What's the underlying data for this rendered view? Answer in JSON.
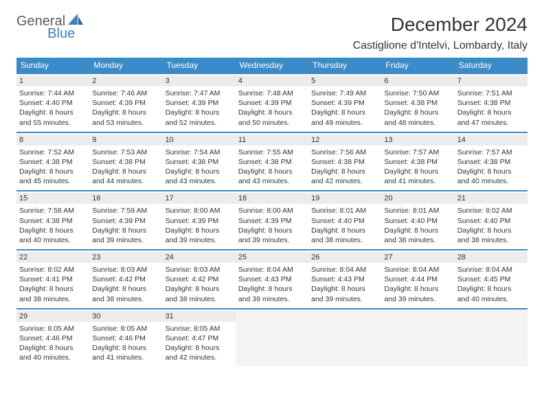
{
  "logo": {
    "part1": "General",
    "part2": "Blue"
  },
  "title": "December 2024",
  "location": "Castiglione d'Intelvi, Lombardy, Italy",
  "colors": {
    "header_bg": "#3b8bc9",
    "header_text": "#ffffff",
    "row_border": "#3b8bc9",
    "daynum_bg": "#ececec",
    "empty_bg": "#f4f4f4",
    "logo_gray": "#5a5a5a",
    "logo_blue": "#3b7fc4"
  },
  "day_names": [
    "Sunday",
    "Monday",
    "Tuesday",
    "Wednesday",
    "Thursday",
    "Friday",
    "Saturday"
  ],
  "weeks": [
    [
      {
        "n": "1",
        "sr": "Sunrise: 7:44 AM",
        "ss": "Sunset: 4:40 PM",
        "d1": "Daylight: 8 hours",
        "d2": "and 55 minutes."
      },
      {
        "n": "2",
        "sr": "Sunrise: 7:46 AM",
        "ss": "Sunset: 4:39 PM",
        "d1": "Daylight: 8 hours",
        "d2": "and 53 minutes."
      },
      {
        "n": "3",
        "sr": "Sunrise: 7:47 AM",
        "ss": "Sunset: 4:39 PM",
        "d1": "Daylight: 8 hours",
        "d2": "and 52 minutes."
      },
      {
        "n": "4",
        "sr": "Sunrise: 7:48 AM",
        "ss": "Sunset: 4:39 PM",
        "d1": "Daylight: 8 hours",
        "d2": "and 50 minutes."
      },
      {
        "n": "5",
        "sr": "Sunrise: 7:49 AM",
        "ss": "Sunset: 4:39 PM",
        "d1": "Daylight: 8 hours",
        "d2": "and 49 minutes."
      },
      {
        "n": "6",
        "sr": "Sunrise: 7:50 AM",
        "ss": "Sunset: 4:38 PM",
        "d1": "Daylight: 8 hours",
        "d2": "and 48 minutes."
      },
      {
        "n": "7",
        "sr": "Sunrise: 7:51 AM",
        "ss": "Sunset: 4:38 PM",
        "d1": "Daylight: 8 hours",
        "d2": "and 47 minutes."
      }
    ],
    [
      {
        "n": "8",
        "sr": "Sunrise: 7:52 AM",
        "ss": "Sunset: 4:38 PM",
        "d1": "Daylight: 8 hours",
        "d2": "and 45 minutes."
      },
      {
        "n": "9",
        "sr": "Sunrise: 7:53 AM",
        "ss": "Sunset: 4:38 PM",
        "d1": "Daylight: 8 hours",
        "d2": "and 44 minutes."
      },
      {
        "n": "10",
        "sr": "Sunrise: 7:54 AM",
        "ss": "Sunset: 4:38 PM",
        "d1": "Daylight: 8 hours",
        "d2": "and 43 minutes."
      },
      {
        "n": "11",
        "sr": "Sunrise: 7:55 AM",
        "ss": "Sunset: 4:38 PM",
        "d1": "Daylight: 8 hours",
        "d2": "and 43 minutes."
      },
      {
        "n": "12",
        "sr": "Sunrise: 7:56 AM",
        "ss": "Sunset: 4:38 PM",
        "d1": "Daylight: 8 hours",
        "d2": "and 42 minutes."
      },
      {
        "n": "13",
        "sr": "Sunrise: 7:57 AM",
        "ss": "Sunset: 4:38 PM",
        "d1": "Daylight: 8 hours",
        "d2": "and 41 minutes."
      },
      {
        "n": "14",
        "sr": "Sunrise: 7:57 AM",
        "ss": "Sunset: 4:38 PM",
        "d1": "Daylight: 8 hours",
        "d2": "and 40 minutes."
      }
    ],
    [
      {
        "n": "15",
        "sr": "Sunrise: 7:58 AM",
        "ss": "Sunset: 4:38 PM",
        "d1": "Daylight: 8 hours",
        "d2": "and 40 minutes."
      },
      {
        "n": "16",
        "sr": "Sunrise: 7:59 AM",
        "ss": "Sunset: 4:39 PM",
        "d1": "Daylight: 8 hours",
        "d2": "and 39 minutes."
      },
      {
        "n": "17",
        "sr": "Sunrise: 8:00 AM",
        "ss": "Sunset: 4:39 PM",
        "d1": "Daylight: 8 hours",
        "d2": "and 39 minutes."
      },
      {
        "n": "18",
        "sr": "Sunrise: 8:00 AM",
        "ss": "Sunset: 4:39 PM",
        "d1": "Daylight: 8 hours",
        "d2": "and 39 minutes."
      },
      {
        "n": "19",
        "sr": "Sunrise: 8:01 AM",
        "ss": "Sunset: 4:40 PM",
        "d1": "Daylight: 8 hours",
        "d2": "and 38 minutes."
      },
      {
        "n": "20",
        "sr": "Sunrise: 8:01 AM",
        "ss": "Sunset: 4:40 PM",
        "d1": "Daylight: 8 hours",
        "d2": "and 38 minutes."
      },
      {
        "n": "21",
        "sr": "Sunrise: 8:02 AM",
        "ss": "Sunset: 4:40 PM",
        "d1": "Daylight: 8 hours",
        "d2": "and 38 minutes."
      }
    ],
    [
      {
        "n": "22",
        "sr": "Sunrise: 8:02 AM",
        "ss": "Sunset: 4:41 PM",
        "d1": "Daylight: 8 hours",
        "d2": "and 38 minutes."
      },
      {
        "n": "23",
        "sr": "Sunrise: 8:03 AM",
        "ss": "Sunset: 4:42 PM",
        "d1": "Daylight: 8 hours",
        "d2": "and 38 minutes."
      },
      {
        "n": "24",
        "sr": "Sunrise: 8:03 AM",
        "ss": "Sunset: 4:42 PM",
        "d1": "Daylight: 8 hours",
        "d2": "and 38 minutes."
      },
      {
        "n": "25",
        "sr": "Sunrise: 8:04 AM",
        "ss": "Sunset: 4:43 PM",
        "d1": "Daylight: 8 hours",
        "d2": "and 39 minutes."
      },
      {
        "n": "26",
        "sr": "Sunrise: 8:04 AM",
        "ss": "Sunset: 4:43 PM",
        "d1": "Daylight: 8 hours",
        "d2": "and 39 minutes."
      },
      {
        "n": "27",
        "sr": "Sunrise: 8:04 AM",
        "ss": "Sunset: 4:44 PM",
        "d1": "Daylight: 8 hours",
        "d2": "and 39 minutes."
      },
      {
        "n": "28",
        "sr": "Sunrise: 8:04 AM",
        "ss": "Sunset: 4:45 PM",
        "d1": "Daylight: 8 hours",
        "d2": "and 40 minutes."
      }
    ],
    [
      {
        "n": "29",
        "sr": "Sunrise: 8:05 AM",
        "ss": "Sunset: 4:46 PM",
        "d1": "Daylight: 8 hours",
        "d2": "and 40 minutes."
      },
      {
        "n": "30",
        "sr": "Sunrise: 8:05 AM",
        "ss": "Sunset: 4:46 PM",
        "d1": "Daylight: 8 hours",
        "d2": "and 41 minutes."
      },
      {
        "n": "31",
        "sr": "Sunrise: 8:05 AM",
        "ss": "Sunset: 4:47 PM",
        "d1": "Daylight: 8 hours",
        "d2": "and 42 minutes."
      },
      {
        "empty": true
      },
      {
        "empty": true
      },
      {
        "empty": true
      },
      {
        "empty": true
      }
    ]
  ]
}
